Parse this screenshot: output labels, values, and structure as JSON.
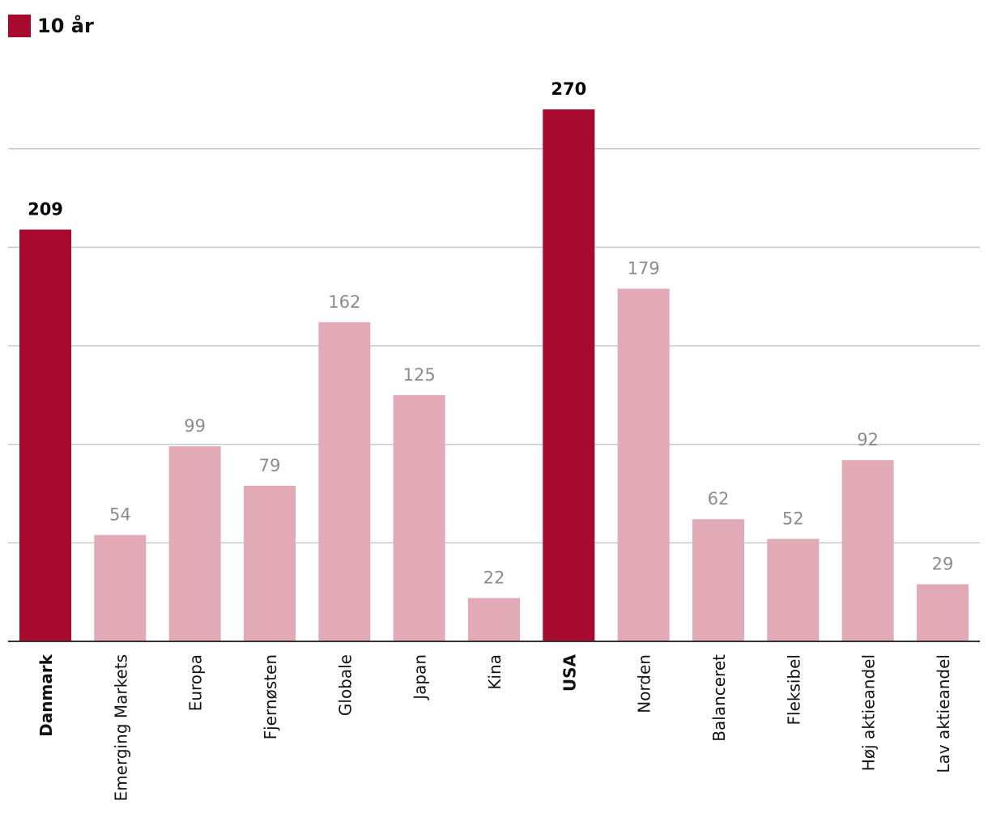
{
  "legend": {
    "label": "10 år",
    "color": "#a80a2f"
  },
  "colors": {
    "highlight": "#a80a2f",
    "normal": "#e2aab6",
    "highlight_label": "#000000",
    "normal_label": "#8c8c8c",
    "gridline": "#c8c8c8",
    "baseline": "#333333"
  },
  "chart_data": {
    "type": "bar",
    "categories": [
      "Danmark",
      "Emerging Markets",
      "Europa",
      "Fjernøsten",
      "Globale",
      "Japan",
      "Kina",
      "USA",
      "Norden",
      "Balanceret",
      "Fleksibel",
      "Høj aktieandel",
      "Lav aktieandel"
    ],
    "values": [
      209,
      54,
      99,
      79,
      162,
      125,
      22,
      270,
      179,
      62,
      52,
      92,
      29
    ],
    "highlighted": [
      "Danmark",
      "USA"
    ],
    "series": [
      {
        "name": "10 år",
        "values": [
          209,
          54,
          99,
          79,
          162,
          125,
          22,
          270,
          179,
          62,
          52,
          92,
          29
        ]
      }
    ],
    "title": "",
    "xlabel": "",
    "ylabel": "",
    "ylim": [
      0,
      290
    ],
    "y_gridlines": [
      50,
      100,
      150,
      200,
      250
    ],
    "y_tick_labels_shown": false,
    "grid": true,
    "legend_position": "top-left",
    "data_labels": true
  }
}
